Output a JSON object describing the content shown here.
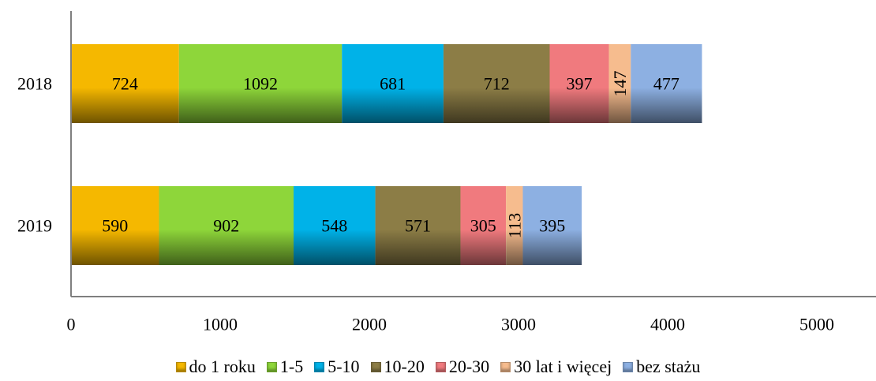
{
  "chart_data": {
    "type": "bar",
    "orientation": "horizontal",
    "stacked": true,
    "categories": [
      "2018",
      "2019"
    ],
    "series": [
      {
        "name": "do 1 roku",
        "values": [
          724,
          590
        ],
        "color": "#f5b800"
      },
      {
        "name": "1-5",
        "values": [
          1092,
          902
        ],
        "color": "#8ed63a"
      },
      {
        "name": "5-10",
        "values": [
          681,
          548
        ],
        "color": "#00b2e8"
      },
      {
        "name": "10-20",
        "values": [
          712,
          571
        ],
        "color": "#8c7d46"
      },
      {
        "name": "20-30",
        "values": [
          397,
          305
        ],
        "color": "#f07a7e"
      },
      {
        "name": "30 lat i więcej",
        "values": [
          147,
          113
        ],
        "color": "#f6bc8e"
      },
      {
        "name": "bez stażu",
        "values": [
          477,
          395
        ],
        "color": "#8db0e2"
      }
    ],
    "x_ticks": [
      "0",
      "1000",
      "2000",
      "3000",
      "4000",
      "5000"
    ],
    "xlim": [
      0,
      5400
    ],
    "title": "",
    "xlabel": "",
    "ylabel": "",
    "grid": false,
    "legend_position": "bottom"
  }
}
